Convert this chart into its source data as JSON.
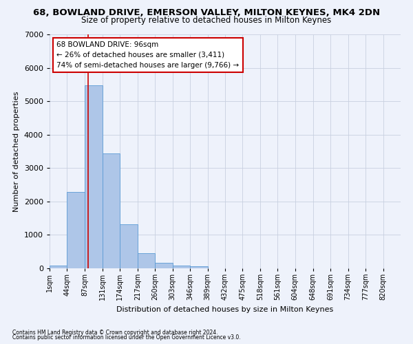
{
  "title": "68, BOWLAND DRIVE, EMERSON VALLEY, MILTON KEYNES, MK4 2DN",
  "subtitle": "Size of property relative to detached houses in Milton Keynes",
  "xlabel": "Distribution of detached houses by size in Milton Keynes",
  "ylabel": "Number of detached properties",
  "footnote1": "Contains HM Land Registry data © Crown copyright and database right 2024.",
  "footnote2": "Contains public sector information licensed under the Open Government Licence v3.0.",
  "bar_values": [
    80,
    2280,
    5480,
    3440,
    1310,
    460,
    155,
    80,
    55,
    0,
    0,
    0,
    0,
    0,
    0,
    0,
    0,
    0,
    0,
    0
  ],
  "bin_edges": [
    1,
    44,
    87,
    131,
    174,
    217,
    260,
    303,
    346,
    389,
    432,
    475,
    518,
    561,
    604,
    648,
    691,
    734,
    777,
    820,
    863
  ],
  "bar_color": "#aec6e8",
  "bar_edgecolor": "#5b9bd5",
  "property_size": 96,
  "property_label": "68 BOWLAND DRIVE: 96sqm",
  "annotation_line1": "← 26% of detached houses are smaller (3,411)",
  "annotation_line2": "74% of semi-detached houses are larger (9,766) →",
  "vline_color": "#cc0000",
  "annotation_box_color": "#cc0000",
  "background_color": "#eef2fb",
  "ylim": [
    0,
    7000
  ],
  "yticks": [
    0,
    1000,
    2000,
    3000,
    4000,
    5000,
    6000,
    7000
  ],
  "grid_color": "#c8d0e0",
  "title_fontsize": 9.5,
  "subtitle_fontsize": 8.5,
  "axis_label_fontsize": 8,
  "tick_fontsize": 7
}
